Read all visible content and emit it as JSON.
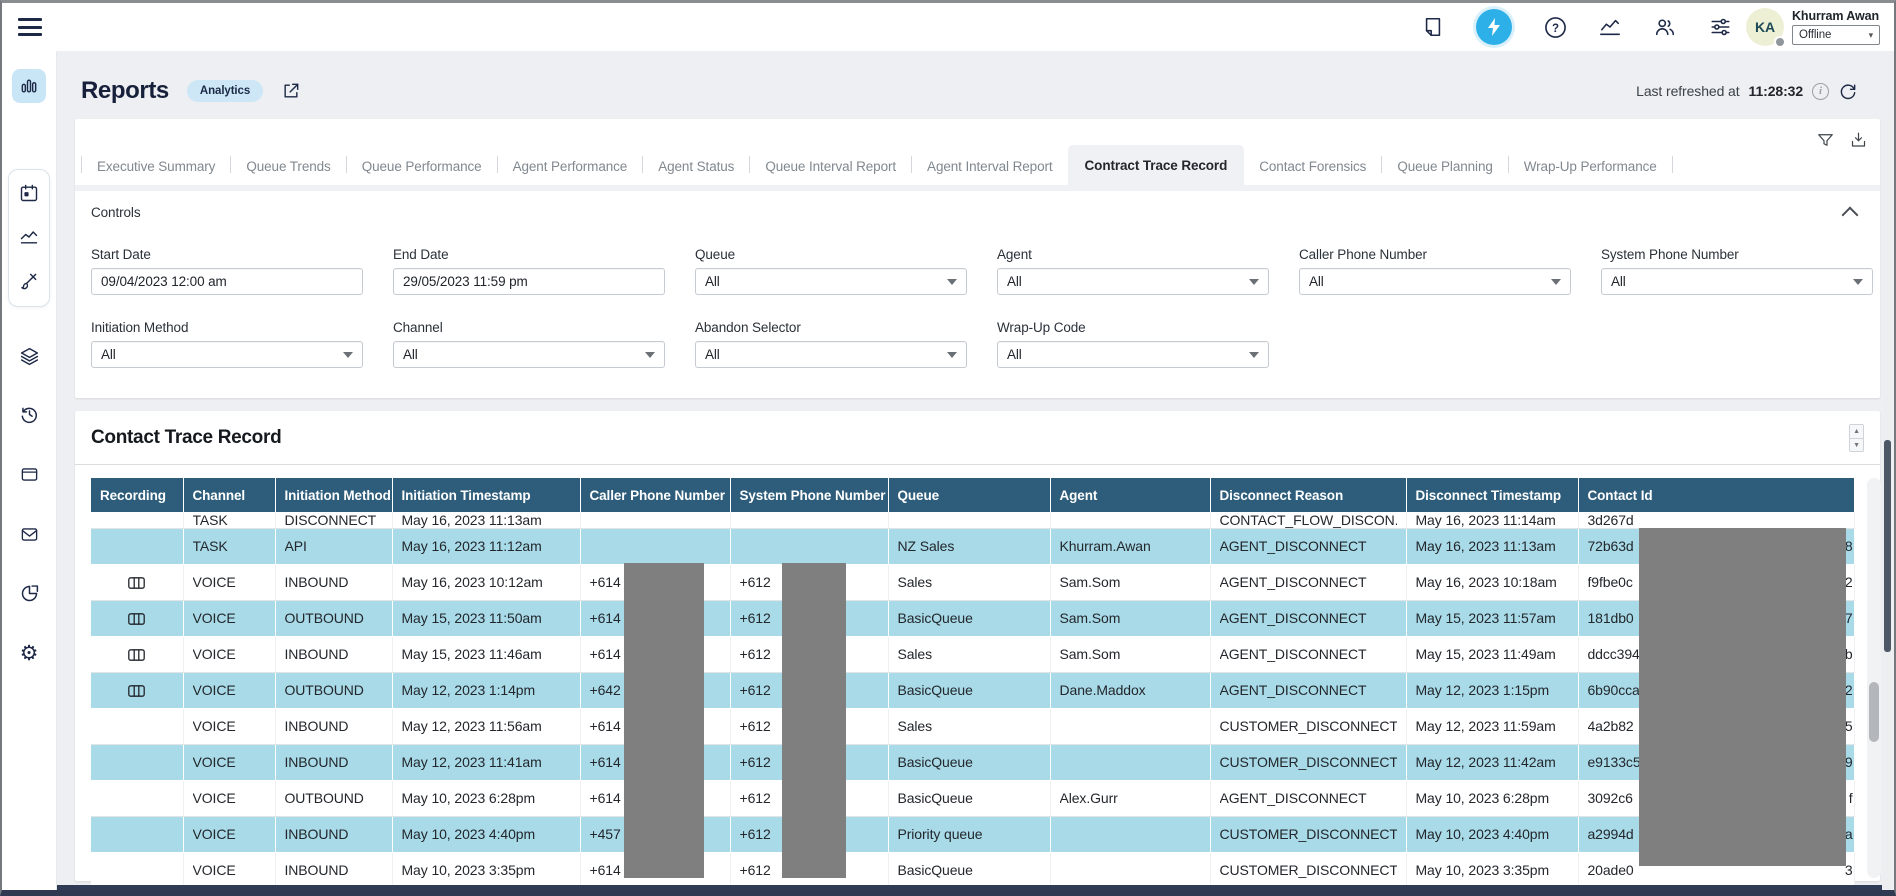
{
  "topbar": {
    "user": {
      "initials": "KA",
      "name": "Khurram Awan",
      "status": "Offline"
    }
  },
  "header": {
    "title": "Reports",
    "badge": "Analytics",
    "refreshed_label": "Last refreshed at",
    "refreshed_time": "11:28:32"
  },
  "tabs": [
    {
      "label": "Executive Summary",
      "active": false
    },
    {
      "label": "Queue Trends",
      "active": false
    },
    {
      "label": "Queue Performance",
      "active": false
    },
    {
      "label": "Agent Performance",
      "active": false
    },
    {
      "label": "Agent Status",
      "active": false
    },
    {
      "label": "Queue Interval Report",
      "active": false
    },
    {
      "label": "Agent Interval Report",
      "active": false
    },
    {
      "label": "Contract Trace Record",
      "active": true
    },
    {
      "label": "Contact Forensics",
      "active": false
    },
    {
      "label": "Queue Planning",
      "active": false
    },
    {
      "label": "Wrap-Up Performance",
      "active": false
    }
  ],
  "controls": {
    "title": "Controls",
    "fields": [
      {
        "name": "start-date",
        "label": "Start Date",
        "value": "09/04/2023 12:00 am",
        "type": "text"
      },
      {
        "name": "end-date",
        "label": "End Date",
        "value": "29/05/2023 11:59 pm",
        "type": "text"
      },
      {
        "name": "queue",
        "label": "Queue",
        "value": "All",
        "type": "select"
      },
      {
        "name": "agent",
        "label": "Agent",
        "value": "All",
        "type": "select"
      },
      {
        "name": "caller-phone-number",
        "label": "Caller Phone Number",
        "value": "All",
        "type": "select"
      },
      {
        "name": "system-phone-number",
        "label": "System Phone Number",
        "value": "All",
        "type": "select"
      },
      {
        "name": "initiation-method",
        "label": "Initiation Method",
        "value": "All",
        "type": "select"
      },
      {
        "name": "channel",
        "label": "Channel",
        "value": "All",
        "type": "select"
      },
      {
        "name": "abandon-selector",
        "label": "Abandon Selector",
        "value": "All",
        "type": "select"
      },
      {
        "name": "wrap-up-code",
        "label": "Wrap-Up Code",
        "value": "All",
        "type": "select"
      }
    ]
  },
  "table": {
    "title": "Contact Trace Record",
    "columns": [
      "Recording",
      "Channel",
      "Initiation Method",
      "Initiation Timestamp",
      "Caller Phone Number",
      "System Phone Number",
      "Queue",
      "Agent",
      "Disconnect Reason",
      "Disconnect Timestamp",
      "Contact Id"
    ],
    "rows": [
      {
        "partial": true,
        "rec": false,
        "channel": "TASK",
        "method": "DISCONNECT",
        "init_ts": "May 16, 2023 11:13am",
        "caller": "",
        "system": "",
        "queue": "",
        "agent": "",
        "reason": "CONTACT_FLOW_DISCON...",
        "disc_ts": "May 16, 2023 11:14am",
        "id": "3d267d",
        "id_tail": ""
      },
      {
        "partial": false,
        "rec": false,
        "channel": "TASK",
        "method": "API",
        "init_ts": "May 16, 2023 11:12am",
        "caller": "",
        "system": "",
        "queue": "NZ Sales",
        "agent": "Khurram.Awan",
        "reason": "AGENT_DISCONNECT",
        "disc_ts": "May 16, 2023 11:13am",
        "id": "72b63d",
        "id_tail": "8"
      },
      {
        "partial": false,
        "rec": true,
        "channel": "VOICE",
        "method": "INBOUND",
        "init_ts": "May 16, 2023 10:12am",
        "caller": "+614",
        "system": "+612",
        "queue": "Sales",
        "agent": "Sam.Som",
        "reason": "AGENT_DISCONNECT",
        "disc_ts": "May 16, 2023 10:18am",
        "id": "f9fbe0c",
        "id_tail": "2"
      },
      {
        "partial": false,
        "rec": true,
        "channel": "VOICE",
        "method": "OUTBOUND",
        "init_ts": "May 15, 2023 11:50am",
        "caller": "+614",
        "system": "+612",
        "queue": "BasicQueue",
        "agent": "Sam.Som",
        "reason": "AGENT_DISCONNECT",
        "disc_ts": "May 15, 2023 11:57am",
        "id": "181db0",
        "id_tail": "7"
      },
      {
        "partial": false,
        "rec": true,
        "channel": "VOICE",
        "method": "INBOUND",
        "init_ts": "May 15, 2023 11:46am",
        "caller": "+614",
        "system": "+612",
        "queue": "Sales",
        "agent": "Sam.Som",
        "reason": "AGENT_DISCONNECT",
        "disc_ts": "May 15, 2023 11:49am",
        "id": "ddcc394",
        "id_tail": "b"
      },
      {
        "partial": false,
        "rec": true,
        "channel": "VOICE",
        "method": "OUTBOUND",
        "init_ts": "May 12, 2023 1:14pm",
        "caller": "+642",
        "system": "+612",
        "queue": "BasicQueue",
        "agent": "Dane.Maddox",
        "reason": "AGENT_DISCONNECT",
        "disc_ts": "May 12, 2023 1:15pm",
        "id": "6b90cca",
        "id_tail": "2"
      },
      {
        "partial": false,
        "rec": false,
        "channel": "VOICE",
        "method": "INBOUND",
        "init_ts": "May 12, 2023 11:56am",
        "caller": "+614",
        "system": "+612",
        "queue": "Sales",
        "agent": "",
        "reason": "CUSTOMER_DISCONNECT",
        "disc_ts": "May 12, 2023 11:59am",
        "id": "4a2b82",
        "id_tail": "5"
      },
      {
        "partial": false,
        "rec": false,
        "channel": "VOICE",
        "method": "INBOUND",
        "init_ts": "May 12, 2023 11:41am",
        "caller": "+614",
        "system": "+612",
        "queue": "BasicQueue",
        "agent": "",
        "reason": "CUSTOMER_DISCONNECT",
        "disc_ts": "May 12, 2023 11:42am",
        "id": "e9133c5",
        "id_tail": "9"
      },
      {
        "partial": false,
        "rec": false,
        "channel": "VOICE",
        "method": "OUTBOUND",
        "init_ts": "May 10, 2023 6:28pm",
        "caller": "+614",
        "system": "+612",
        "queue": "BasicQueue",
        "agent": "Alex.Gurr",
        "reason": "AGENT_DISCONNECT",
        "disc_ts": "May 10, 2023 6:28pm",
        "id": "3092c6",
        "id_tail": "f"
      },
      {
        "partial": false,
        "rec": false,
        "channel": "VOICE",
        "method": "INBOUND",
        "init_ts": "May 10, 2023 4:40pm",
        "caller": "+457",
        "system": "+612",
        "queue": "Priority queue",
        "agent": "",
        "reason": "CUSTOMER_DISCONNECT",
        "disc_ts": "May 10, 2023 4:40pm",
        "id": "a2994d",
        "id_tail": "a"
      },
      {
        "partial": false,
        "rec": false,
        "channel": "VOICE",
        "method": "INBOUND",
        "init_ts": "May 10, 2023 3:35pm",
        "caller": "+614",
        "system": "+612",
        "queue": "BasicQueue",
        "agent": "",
        "reason": "CUSTOMER_DISCONNECT",
        "disc_ts": "May 10, 2023 3:35pm",
        "id": "20ade0",
        "id_tail": "3"
      }
    ]
  }
}
